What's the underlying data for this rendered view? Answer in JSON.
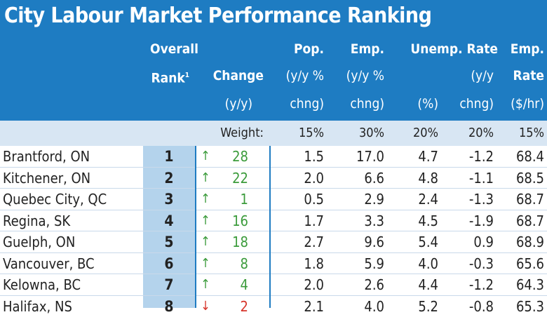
{
  "title": "City Labour Market Performance Ranking",
  "colors": {
    "header_bg": "#1e7cc2",
    "weight_row_bg": "#d8e6f3",
    "rank_col_bg": "#b4d3ec",
    "up_arrow": "#3b9b3b",
    "down_arrow": "#d6342a"
  },
  "headers": {
    "overall": "Overall",
    "rank": "Rank",
    "rank_sup": "1",
    "change": "Change",
    "change_unit": "(y/y)",
    "pop": "Pop.",
    "pop_unit1": "(y/y %",
    "pop_unit2": "chng)",
    "emp": "Emp.",
    "emp_unit1": "(y/y %",
    "emp_unit2": "chng)",
    "unemp_rate": "Unemp. Rate",
    "unemp_unit": "(%)",
    "unemp_chg1": "(y/y",
    "unemp_chg2": "chng)",
    "emp_rate1": "Emp.",
    "emp_rate2": "Rate",
    "emp_rate_unit": "($/hr)"
  },
  "weights": {
    "label": "Weight:",
    "pop": "15%",
    "emp": "30%",
    "unemp": "20%",
    "unemp_chg": "20%",
    "emp_rate": "15%"
  },
  "rows": [
    {
      "city": "Brantford, ON",
      "rank": "1",
      "arrow": "↑",
      "dir": "up",
      "change": "28",
      "pop": "1.5",
      "emp": "17.0",
      "unemp": "4.7",
      "unemp_chg": "-1.2",
      "emp_rate": "68.4"
    },
    {
      "city": "Kitchener, ON",
      "rank": "2",
      "arrow": "↑",
      "dir": "up",
      "change": "22",
      "pop": "2.0",
      "emp": "6.6",
      "unemp": "4.8",
      "unemp_chg": "-1.1",
      "emp_rate": "68.5"
    },
    {
      "city": "Quebec City, QC",
      "rank": "3",
      "arrow": "↑",
      "dir": "up",
      "change": "1",
      "pop": "0.5",
      "emp": "2.9",
      "unemp": "2.4",
      "unemp_chg": "-1.3",
      "emp_rate": "68.7"
    },
    {
      "city": "Regina, SK",
      "rank": "4",
      "arrow": "↑",
      "dir": "up",
      "change": "16",
      "pop": "1.7",
      "emp": "3.3",
      "unemp": "4.5",
      "unemp_chg": "-1.9",
      "emp_rate": "68.7"
    },
    {
      "city": "Guelph, ON",
      "rank": "5",
      "arrow": "↑",
      "dir": "up",
      "change": "18",
      "pop": "2.7",
      "emp": "9.6",
      "unemp": "5.4",
      "unemp_chg": "0.9",
      "emp_rate": "68.9"
    },
    {
      "city": "Vancouver, BC",
      "rank": "6",
      "arrow": "↑",
      "dir": "up",
      "change": "8",
      "pop": "1.8",
      "emp": "5.9",
      "unemp": "4.0",
      "unemp_chg": "-0.3",
      "emp_rate": "65.6"
    },
    {
      "city": "Kelowna, BC",
      "rank": "7",
      "arrow": "↑",
      "dir": "up",
      "change": "4",
      "pop": "2.0",
      "emp": "2.6",
      "unemp": "4.4",
      "unemp_chg": "-1.2",
      "emp_rate": "64.3"
    },
    {
      "city": "Halifax, NS",
      "rank": "8",
      "arrow": "↓",
      "dir": "down",
      "change": "2",
      "pop": "2.1",
      "emp": "4.0",
      "unemp": "5.2",
      "unemp_chg": "-0.8",
      "emp_rate": "65.3"
    }
  ]
}
